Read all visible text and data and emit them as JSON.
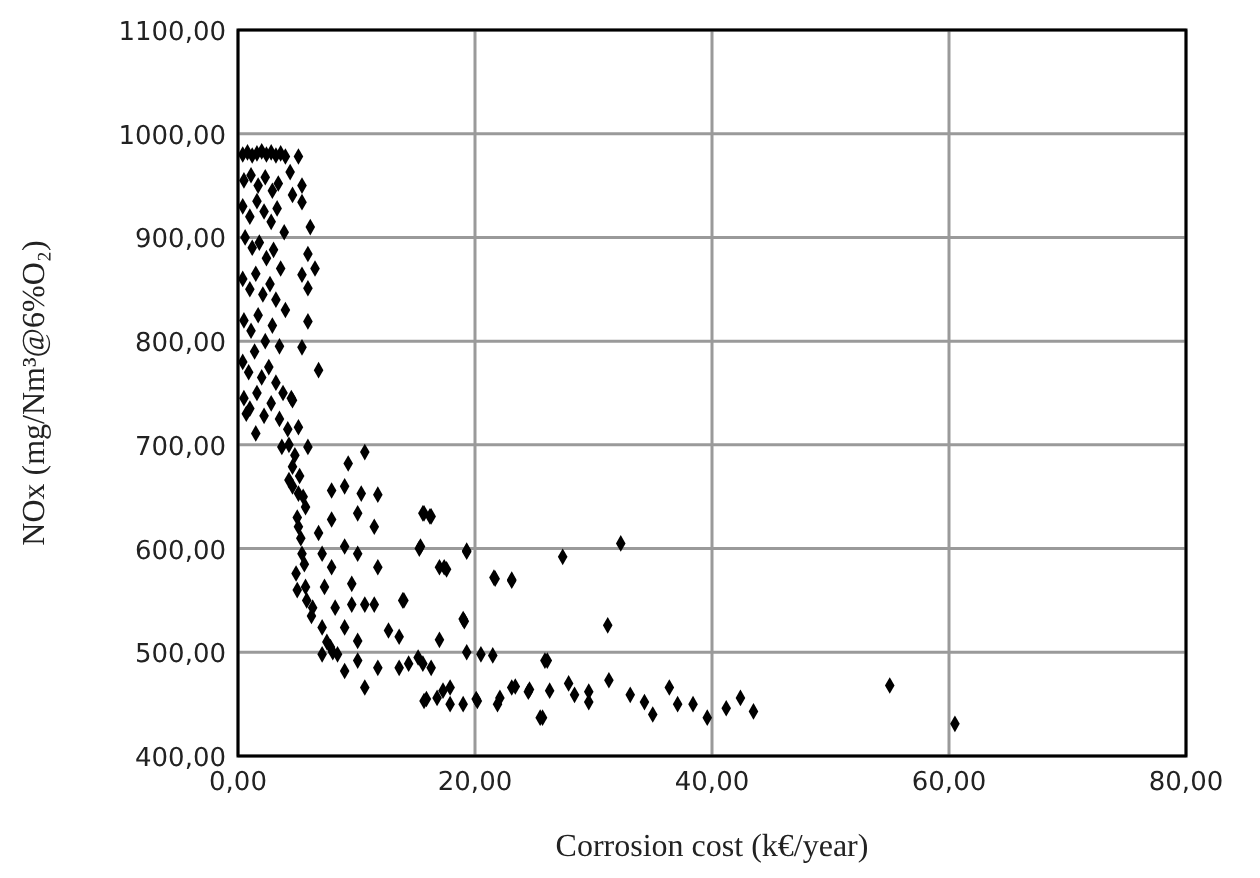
{
  "chart_data": {
    "type": "scatter",
    "xlabel": "Corrosion cost (k€/year)",
    "ylabel": "NOx (mg/Nm³@6%O₂)",
    "xlim": [
      0,
      80
    ],
    "ylim": [
      400,
      1100
    ],
    "xticks": [
      {
        "value": 0,
        "label": "0,00"
      },
      {
        "value": 20,
        "label": "20,00"
      },
      {
        "value": 40,
        "label": "40,00"
      },
      {
        "value": 60,
        "label": "60,00"
      },
      {
        "value": 80,
        "label": "80,00"
      }
    ],
    "yticks": [
      {
        "value": 400,
        "label": "400,00"
      },
      {
        "value": 500,
        "label": "500,00"
      },
      {
        "value": 600,
        "label": "600,00"
      },
      {
        "value": 700,
        "label": "700,00"
      },
      {
        "value": 800,
        "label": "800,00"
      },
      {
        "value": 900,
        "label": "900,00"
      },
      {
        "value": 1000,
        "label": "1000,00"
      },
      {
        "value": 1100,
        "label": "1100,00"
      }
    ],
    "grid": true,
    "marker": "diamond",
    "series": [
      {
        "color": "#000000",
        "x": [
          0.4,
          0.8,
          1.2,
          1.6,
          2.0,
          2.4,
          2.8,
          3.2,
          3.6,
          4.0,
          0.5,
          1.1,
          1.7,
          2.3,
          2.9,
          3.4,
          0.4,
          1.0,
          1.6,
          2.2,
          2.8,
          3.3,
          3.9,
          0.6,
          1.2,
          1.8,
          2.4,
          3.0,
          3.6,
          0.4,
          1.0,
          1.5,
          2.1,
          2.7,
          3.2,
          4.0,
          0.5,
          1.1,
          1.7,
          2.3,
          2.9,
          3.5,
          0.4,
          0.9,
          1.4,
          2.0,
          2.6,
          3.2,
          3.8,
          4.5,
          0.5,
          1.0,
          1.6,
          2.2,
          2.8,
          3.5,
          4.2,
          1.5,
          0.7,
          5.1,
          4.4,
          5.4,
          4.6,
          5.4,
          6.1,
          5.9,
          6.5,
          5.4,
          5.9,
          5.9,
          5.4,
          6.8,
          4.6,
          5.1,
          3.7,
          4.6,
          5.9,
          4.3,
          5.1,
          5.7,
          5.1,
          5.4,
          4.9,
          5.7,
          6.3,
          7.1,
          7.1,
          9.0,
          4.3,
          4.8,
          5.2,
          4.6,
          5.5,
          5.0,
          5.3,
          5.6,
          5.0,
          5.8,
          6.2,
          7.5,
          8.0,
          7.8,
          7.9,
          9.3,
          10.7,
          10.4,
          11.8,
          9.0,
          10.1,
          11.5,
          7.9,
          6.8,
          9.0,
          10.1,
          7.9,
          7.1,
          9.6,
          7.3,
          8.2,
          11.8,
          9.6,
          10.7,
          11.5,
          14.0,
          9.0,
          10.1,
          8.4,
          10.1,
          11.8,
          10.7,
          12.7,
          13.6,
          14.4,
          15.2,
          16.3,
          15.7,
          16.8,
          17.9,
          19.0,
          20.2,
          13.6,
          15.7,
          16.3,
          15.4,
          19.3,
          17.4,
          21.6,
          23.1,
          19.1,
          20.5,
          21.9,
          23.1,
          24.5,
          25.7,
          26.1,
          32.3,
          27.4,
          21.7,
          23.1,
          19.3,
          31.2,
          19.0,
          19.3,
          21.5,
          25.9,
          31.3,
          27.9,
          23.4,
          24.6,
          26.3,
          22.1,
          25.5,
          28.4,
          29.6,
          29.6,
          33.1,
          34.3,
          35.0,
          36.4,
          37.1,
          38.4,
          39.6,
          41.2,
          42.4,
          43.5,
          55.0,
          60.5,
          15.6,
          16.2,
          15.3,
          17.0,
          17.6,
          13.9,
          17.0,
          15.6,
          17.9,
          15.9,
          20.1,
          17.3
        ],
        "values": [
          980,
          982,
          979,
          981,
          983,
          980,
          982,
          979,
          981,
          978,
          955,
          960,
          950,
          958,
          945,
          952,
          930,
          920,
          935,
          925,
          915,
          928,
          905,
          900,
          890,
          895,
          880,
          888,
          870,
          860,
          850,
          865,
          845,
          855,
          840,
          830,
          820,
          810,
          825,
          800,
          815,
          795,
          780,
          770,
          790,
          765,
          775,
          760,
          750,
          745,
          745,
          735,
          750,
          728,
          740,
          725,
          715,
          711,
          730,
          978,
          963,
          950,
          941,
          934,
          910,
          884,
          870,
          864,
          851,
          819,
          794,
          772,
          743,
          717,
          698,
          679,
          698,
          666,
          653,
          640,
          621,
          595,
          576,
          563,
          543,
          524,
          498,
          482,
          700,
          690,
          670,
          660,
          650,
          630,
          610,
          585,
          560,
          550,
          535,
          510,
          500,
          505,
          656,
          682,
          693,
          653,
          652,
          660,
          634,
          621,
          628,
          615,
          602,
          595,
          582,
          595,
          566,
          563,
          543,
          582,
          546,
          546,
          546,
          550,
          524,
          511,
          498,
          492,
          485,
          466,
          521,
          515,
          489,
          495,
          485,
          453,
          456,
          466,
          450,
          453,
          485,
          634,
          631,
          602,
          598,
          582,
          572,
          570,
          530,
          498,
          450,
          466,
          462,
          437,
          492,
          605,
          592,
          571,
          569,
          597,
          526,
          532,
          500,
          497,
          492,
          473,
          470,
          467,
          464,
          463,
          456,
          437,
          459,
          462,
          452,
          459,
          452,
          440,
          466,
          450,
          450,
          437,
          446,
          456,
          443,
          468,
          431,
          634,
          631,
          600,
          582,
          580,
          550,
          512,
          489,
          450,
          455,
          455,
          463
        ]
      }
    ]
  }
}
